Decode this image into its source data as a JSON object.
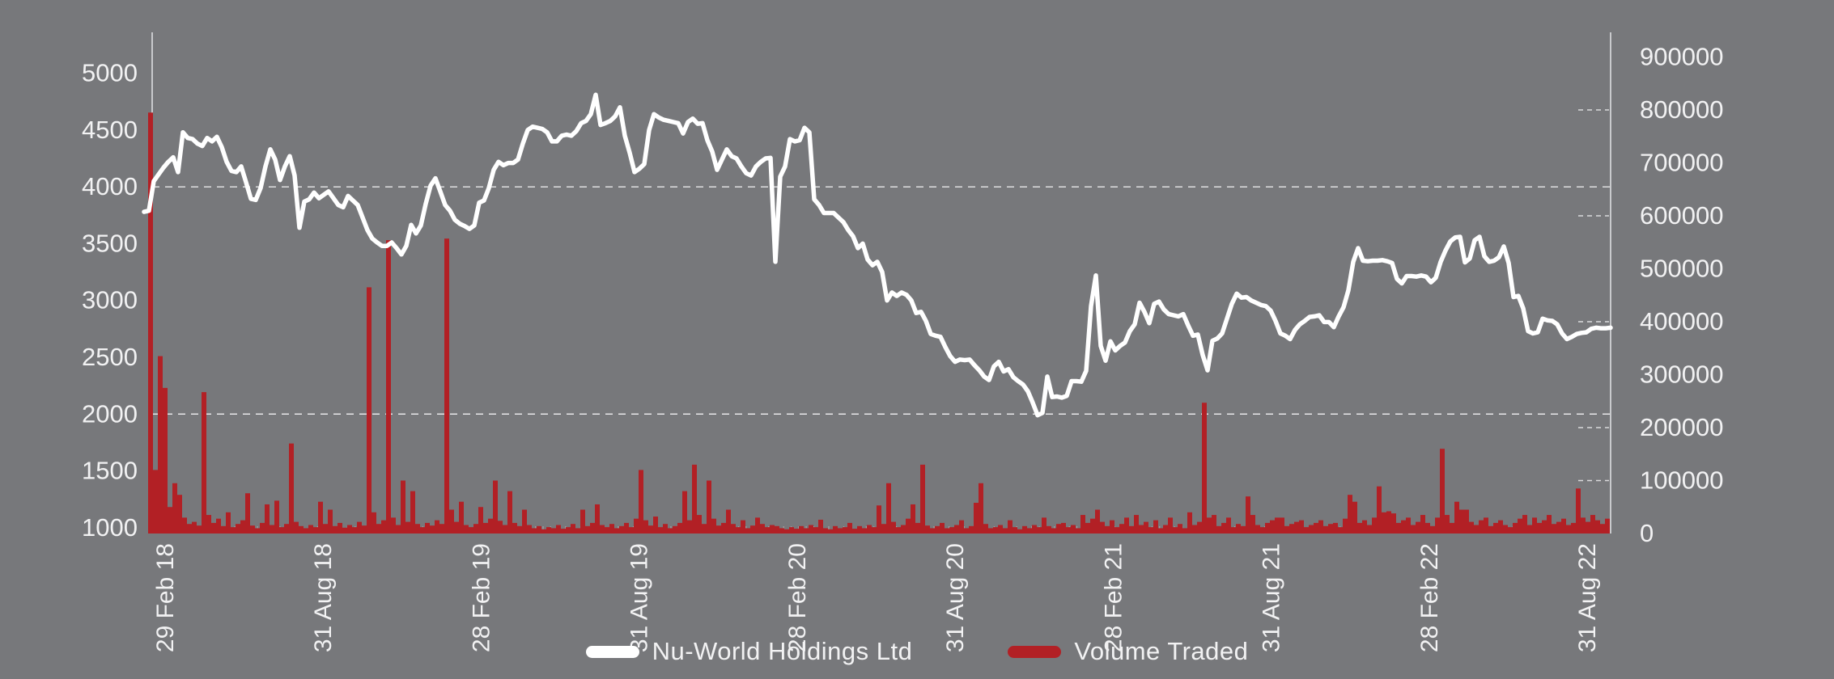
{
  "chart_data": {
    "type": "line+bar",
    "title": "",
    "background_color": "#77787b",
    "text_color": "#f2f2f3",
    "axis_line_color": "#c9cacd",
    "gridline_color": "#e8e8ea",
    "minor_tick_color": "#9fa0a3",
    "legend": [
      {
        "label": "Nu-World Holdings Ltd",
        "color": "#ffffff"
      },
      {
        "label": "Volume Traded",
        "color": "#b22025"
      }
    ],
    "x_axis": {
      "labels": [
        "29 Feb 18",
        "31 Aug 18",
        "28 Feb 19",
        "31 Aug 19",
        "28 Feb 20",
        "31 Aug 20",
        "28 Feb 21",
        "31 Aug 21",
        "28 Feb 22",
        "31 Aug 22"
      ]
    },
    "left_axis": {
      "min": 1000,
      "max": 5000,
      "ticks": [
        5000,
        4500,
        4000,
        3500,
        3000,
        2500,
        2000,
        1500,
        1000
      ],
      "gridlines": [
        4000,
        2000
      ]
    },
    "right_axis": {
      "min": 0,
      "max": 900000,
      "ticks": [
        900000,
        800000,
        700000,
        600000,
        500000,
        400000,
        300000,
        200000,
        100000,
        0
      ],
      "tick_dashes": [
        800000,
        600000,
        400000,
        200000,
        100000
      ]
    },
    "series": [
      {
        "name": "Nu-World Holdings Ltd",
        "kind": "line",
        "axis": "left",
        "color": "#ffffff",
        "values": [
          3780,
          3790,
          4050,
          4110,
          4170,
          4220,
          4260,
          4130,
          4480,
          4430,
          4420,
          4380,
          4360,
          4430,
          4400,
          4440,
          4350,
          4220,
          4140,
          4130,
          4180,
          4040,
          3895,
          3885,
          3990,
          4180,
          4330,
          4240,
          4060,
          4180,
          4270,
          4100,
          3640,
          3870,
          3890,
          3950,
          3900,
          3930,
          3960,
          3900,
          3840,
          3820,
          3920,
          3880,
          3840,
          3730,
          3620,
          3545,
          3510,
          3480,
          3480,
          3510,
          3460,
          3405,
          3480,
          3665,
          3590,
          3660,
          3850,
          4010,
          4075,
          3960,
          3840,
          3790,
          3710,
          3675,
          3655,
          3630,
          3660,
          3860,
          3880,
          3990,
          4150,
          4220,
          4190,
          4210,
          4210,
          4240,
          4380,
          4500,
          4530,
          4520,
          4510,
          4480,
          4400,
          4400,
          4450,
          4460,
          4450,
          4490,
          4560,
          4580,
          4640,
          4810,
          4545,
          4560,
          4580,
          4620,
          4700,
          4450,
          4300,
          4130,
          4160,
          4200,
          4500,
          4640,
          4610,
          4590,
          4580,
          4570,
          4560,
          4470,
          4570,
          4600,
          4555,
          4560,
          4410,
          4310,
          4150,
          4240,
          4330,
          4270,
          4250,
          4180,
          4120,
          4100,
          4180,
          4220,
          4250,
          4255,
          3340,
          4090,
          4180,
          4420,
          4400,
          4410,
          4520,
          4480,
          3890,
          3840,
          3770,
          3770,
          3770,
          3730,
          3690,
          3620,
          3565,
          3460,
          3500,
          3360,
          3310,
          3340,
          3250,
          3000,
          3070,
          3040,
          3070,
          3050,
          3000,
          2890,
          2900,
          2820,
          2705,
          2690,
          2680,
          2590,
          2510,
          2460,
          2480,
          2475,
          2480,
          2430,
          2385,
          2330,
          2300,
          2420,
          2460,
          2375,
          2395,
          2325,
          2290,
          2260,
          2200,
          2100,
          1990,
          2010,
          2330,
          2150,
          2155,
          2145,
          2160,
          2290,
          2290,
          2285,
          2380,
          2950,
          3220,
          2600,
          2470,
          2640,
          2560,
          2600,
          2630,
          2730,
          2790,
          2980,
          2900,
          2800,
          2970,
          2990,
          2920,
          2880,
          2870,
          2860,
          2880,
          2780,
          2690,
          2700,
          2520,
          2385,
          2645,
          2665,
          2710,
          2840,
          2970,
          3060,
          3025,
          3030,
          3000,
          2980,
          2960,
          2950,
          2910,
          2820,
          2710,
          2690,
          2660,
          2740,
          2790,
          2820,
          2855,
          2860,
          2870,
          2810,
          2810,
          2765,
          2860,
          2940,
          3090,
          3340,
          3460,
          3350,
          3345,
          3350,
          3350,
          3355,
          3345,
          3330,
          3190,
          3150,
          3215,
          3215,
          3210,
          3220,
          3210,
          3160,
          3200,
          3340,
          3440,
          3520,
          3555,
          3560,
          3335,
          3370,
          3530,
          3560,
          3390,
          3340,
          3350,
          3380,
          3475,
          3330,
          3030,
          3040,
          2930,
          2730,
          2710,
          2720,
          2840,
          2825,
          2820,
          2790,
          2710,
          2660,
          2680,
          2705,
          2715,
          2720,
          2750,
          2760,
          2755,
          2755,
          2760
        ]
      },
      {
        "name": "Volume Traded",
        "kind": "bar",
        "axis": "right",
        "color": "#b22025",
        "values": [
          795000,
          120000,
          335000,
          275000,
          50000,
          95000,
          73000,
          30000,
          18000,
          22000,
          15000,
          267000,
          35000,
          20000,
          28000,
          14000,
          40000,
          12000,
          18000,
          25000,
          76000,
          15000,
          10000,
          20000,
          55000,
          16000,
          62000,
          12000,
          18000,
          170000,
          22000,
          14000,
          10000,
          16000,
          12000,
          60000,
          18000,
          45000,
          14000,
          20000,
          11000,
          16000,
          12000,
          22000,
          15000,
          465000,
          40000,
          18000,
          25000,
          554000,
          30000,
          16000,
          100000,
          22000,
          80000,
          18000,
          12000,
          20000,
          15000,
          25000,
          18000,
          557000,
          45000,
          22000,
          60000,
          16000,
          12000,
          18000,
          50000,
          20000,
          28000,
          100000,
          24000,
          16000,
          80000,
          20000,
          14000,
          45000,
          16000,
          10000,
          14000,
          8000,
          12000,
          10000,
          16000,
          9000,
          12000,
          18000,
          10000,
          45000,
          14000,
          20000,
          55000,
          16000,
          12000,
          18000,
          10000,
          14000,
          20000,
          12000,
          28000,
          120000,
          25000,
          15000,
          32000,
          12000,
          18000,
          10000,
          14000,
          20000,
          80000,
          25000,
          130000,
          35000,
          18000,
          100000,
          28000,
          15000,
          20000,
          45000,
          18000,
          12000,
          25000,
          10000,
          15000,
          30000,
          18000,
          12000,
          16000,
          14000,
          10000,
          8000,
          12000,
          9000,
          14000,
          10000,
          16000,
          12000,
          26000,
          10000,
          8000,
          14000,
          10000,
          12000,
          20000,
          9000,
          14000,
          10000,
          16000,
          12000,
          53000,
          18000,
          95000,
          22000,
          12000,
          16000,
          28000,
          55000,
          20000,
          130000,
          15000,
          10000,
          14000,
          20000,
          10000,
          12000,
          16000,
          25000,
          10000,
          14000,
          58000,
          95000,
          18000,
          10000,
          12000,
          16000,
          10000,
          25000,
          12000,
          8000,
          14000,
          10000,
          16000,
          12000,
          30000,
          14000,
          10000,
          18000,
          20000,
          12000,
          16000,
          10000,
          35000,
          20000,
          28000,
          45000,
          22000,
          14000,
          25000,
          12000,
          18000,
          30000,
          14000,
          35000,
          16000,
          22000,
          12000,
          25000,
          10000,
          16000,
          30000,
          12000,
          18000,
          10000,
          40000,
          16000,
          22000,
          247000,
          30000,
          35000,
          14000,
          20000,
          30000,
          12000,
          18000,
          14000,
          70000,
          35000,
          16000,
          12000,
          20000,
          25000,
          30000,
          30000,
          14000,
          18000,
          22000,
          25000,
          12000,
          16000,
          20000,
          25000,
          14000,
          18000,
          20000,
          12000,
          28000,
          73000,
          60000,
          20000,
          25000,
          16000,
          30000,
          89000,
          40000,
          42000,
          38000,
          20000,
          25000,
          30000,
          16000,
          22000,
          35000,
          20000,
          14000,
          30000,
          160000,
          35000,
          20000,
          60000,
          45000,
          45000,
          22000,
          16000,
          25000,
          30000,
          14000,
          20000,
          25000,
          16000,
          12000,
          20000,
          28000,
          35000,
          16000,
          30000,
          20000,
          25000,
          35000,
          18000,
          22000,
          28000,
          16000,
          20000,
          85000,
          30000,
          22000,
          35000,
          25000,
          18000,
          28000
        ]
      }
    ]
  }
}
